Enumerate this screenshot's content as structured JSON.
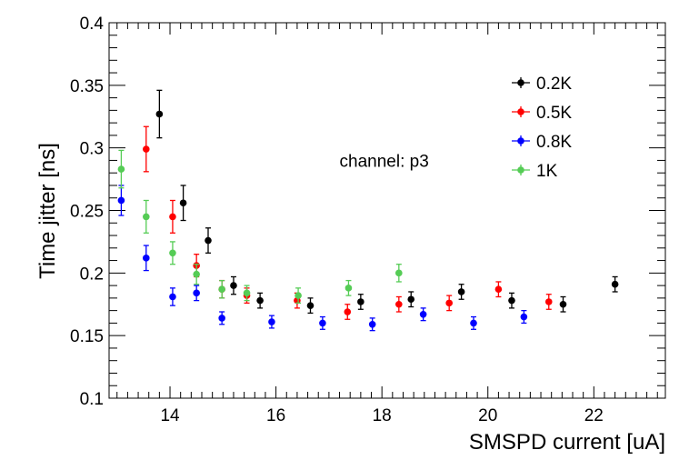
{
  "chart_data": {
    "type": "scatter",
    "title": "",
    "xlabel": "SMSPD current [uA]",
    "ylabel": "Time jitter [ns]",
    "xlim": [
      12.85,
      23.35
    ],
    "ylim": [
      0.1,
      0.4
    ],
    "grid": false,
    "legend_position": "top-right",
    "x_ticks": [
      {
        "value": 14,
        "label": "14"
      },
      {
        "value": 16,
        "label": "16"
      },
      {
        "value": 18,
        "label": "18"
      },
      {
        "value": 20,
        "label": "20"
      },
      {
        "value": 22,
        "label": "22"
      }
    ],
    "y_ticks": [
      {
        "value": 0.1,
        "label": "0.1"
      },
      {
        "value": 0.15,
        "label": "0.15"
      },
      {
        "value": 0.2,
        "label": "0.2"
      },
      {
        "value": 0.25,
        "label": "0.25"
      },
      {
        "value": 0.3,
        "label": "0.3"
      },
      {
        "value": 0.35,
        "label": "0.35"
      },
      {
        "value": 0.4,
        "label": "0.4"
      }
    ],
    "annotations": [
      {
        "text": "channel: p3",
        "x": 17.2,
        "y": 0.285
      }
    ],
    "series": [
      {
        "name": "0.2K",
        "color": "#000000",
        "x": [
          13.8,
          14.25,
          14.72,
          15.2,
          15.7,
          16.65,
          17.6,
          18.55,
          19.5,
          20.45,
          21.42,
          22.4
        ],
        "y": [
          0.327,
          0.256,
          0.226,
          0.19,
          0.178,
          0.174,
          0.177,
          0.179,
          0.185,
          0.178,
          0.175,
          0.191
        ],
        "err": [
          0.019,
          0.014,
          0.01,
          0.007,
          0.006,
          0.006,
          0.006,
          0.006,
          0.006,
          0.006,
          0.006,
          0.006
        ]
      },
      {
        "name": "0.5K",
        "color": "#ff0000",
        "x": [
          13.55,
          14.05,
          14.5,
          14.98,
          15.45,
          16.4,
          17.35,
          18.32,
          19.27,
          20.2,
          21.15
        ],
        "y": [
          0.299,
          0.245,
          0.206,
          0.187,
          0.182,
          0.178,
          0.169,
          0.175,
          0.176,
          0.187,
          0.177
        ],
        "err": [
          0.018,
          0.013,
          0.009,
          0.007,
          0.006,
          0.006,
          0.006,
          0.006,
          0.006,
          0.006,
          0.006
        ]
      },
      {
        "name": "0.8K",
        "color": "#0000ff",
        "x": [
          13.08,
          13.55,
          14.05,
          14.5,
          14.98,
          15.92,
          16.88,
          17.82,
          18.78,
          19.73,
          20.68
        ],
        "y": [
          0.258,
          0.212,
          0.181,
          0.184,
          0.164,
          0.161,
          0.16,
          0.159,
          0.167,
          0.16,
          0.165
        ],
        "err": [
          0.012,
          0.01,
          0.007,
          0.006,
          0.005,
          0.005,
          0.005,
          0.005,
          0.005,
          0.005,
          0.005
        ]
      },
      {
        "name": "1K",
        "color": "#55cc55",
        "x": [
          13.08,
          13.55,
          14.05,
          14.5,
          14.98,
          15.45,
          16.42,
          17.37,
          18.32
        ],
        "y": [
          0.283,
          0.245,
          0.216,
          0.199,
          0.187,
          0.184,
          0.182,
          0.188,
          0.2
        ],
        "err": [
          0.015,
          0.013,
          0.009,
          0.008,
          0.007,
          0.006,
          0.006,
          0.006,
          0.007
        ]
      }
    ]
  }
}
